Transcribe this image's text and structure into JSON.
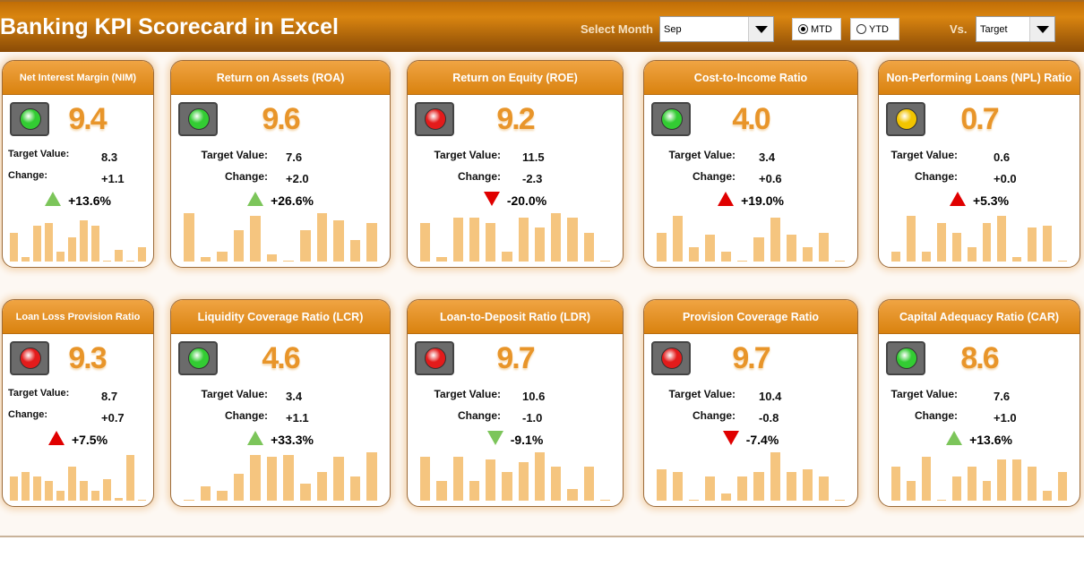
{
  "header": {
    "title": "Banking KPI Scorecard in Excel",
    "select_month_label": "Select Month",
    "month": "Sep",
    "mtd": "MTD",
    "ytd": "YTD",
    "mode_selected": "MTD",
    "vs_label": "Vs.",
    "vs_value": "Target"
  },
  "labels": {
    "target": "Target Value:",
    "change": "Change:"
  },
  "colors": {
    "green": "#33cc33",
    "red": "#e31b1b",
    "yellow": "#f2c400",
    "arrow_green": "#7cc55a",
    "arrow_red": "#e00000"
  },
  "cards": [
    {
      "title": "Net Interest Margin (NIM)",
      "value": "9.4",
      "target": "8.3",
      "change": "+1.1",
      "pct": "+13.6%",
      "dir": "up",
      "arrow_color": "green",
      "light": "green",
      "bars": [
        6,
        1,
        7.5,
        8,
        2,
        5,
        8.5,
        7.5,
        0.2,
        2.5,
        0.2,
        3
      ]
    },
    {
      "title": "Return on Assets (ROA)",
      "value": "9.6",
      "target": "7.6",
      "change": "+2.0",
      "pct": "+26.6%",
      "dir": "up",
      "arrow_color": "green",
      "light": "green",
      "bars": [
        10,
        1,
        2,
        6.5,
        9.5,
        1.5,
        0.2,
        6.5,
        10,
        8.5,
        4.5,
        8
      ]
    },
    {
      "title": "Return on Equity (ROE)",
      "value": "9.2",
      "target": "11.5",
      "change": "-2.3",
      "pct": "-20.0%",
      "dir": "down",
      "arrow_color": "red",
      "light": "red",
      "bars": [
        8,
        1,
        9,
        9,
        8,
        2,
        9,
        7,
        10,
        9,
        6,
        0.2
      ]
    },
    {
      "title": "Cost-to-Income Ratio",
      "value": "4.0",
      "target": "3.4",
      "change": "+0.6",
      "pct": "+19.0%",
      "dir": "up",
      "arrow_color": "red",
      "light": "green",
      "bars": [
        6,
        9.5,
        3,
        5.5,
        2,
        0.2,
        5,
        9,
        5.5,
        3,
        6,
        0.2
      ]
    },
    {
      "title": "Non-Performing Loans (NPL) Ratio",
      "value": "0.7",
      "target": "0.6",
      "change": "+0.0",
      "pct": "+5.3%",
      "dir": "up",
      "arrow_color": "red",
      "light": "yellow",
      "bars": [
        2,
        9.5,
        2,
        8,
        6,
        3,
        8,
        9.5,
        1,
        7,
        7.5,
        0.2
      ]
    },
    {
      "title": "Loan Loss Provision Ratio",
      "value": "9.3",
      "target": "8.7",
      "change": "+0.7",
      "pct": "+7.5%",
      "dir": "up",
      "arrow_color": "red",
      "light": "red",
      "bars": [
        5,
        6,
        5,
        4,
        2,
        7,
        4,
        2,
        4.5,
        0.5,
        9.5,
        0.2
      ]
    },
    {
      "title": "Liquidity Coverage Ratio (LCR)",
      "value": "4.6",
      "target": "3.4",
      "change": "+1.1",
      "pct": "+33.3%",
      "dir": "up",
      "arrow_color": "green",
      "light": "green",
      "bars": [
        0.2,
        3,
        2,
        5.5,
        9.5,
        9,
        9.5,
        3.5,
        6,
        9,
        5,
        10
      ]
    },
    {
      "title": "Loan-to-Deposit Ratio (LDR)",
      "value": "9.7",
      "target": "10.6",
      "change": "-1.0",
      "pct": "-9.1%",
      "dir": "down",
      "arrow_color": "green",
      "light": "red",
      "bars": [
        9,
        4,
        9,
        4,
        8.5,
        6,
        8,
        10,
        7,
        2.5,
        7,
        0.2
      ]
    },
    {
      "title": "Provision Coverage Ratio",
      "value": "9.7",
      "target": "10.4",
      "change": "-0.8",
      "pct": "-7.4%",
      "dir": "down",
      "arrow_color": "red",
      "light": "red",
      "bars": [
        6.5,
        6,
        0.2,
        5,
        1.5,
        5,
        6,
        10,
        6,
        6.5,
        5,
        0.2
      ]
    },
    {
      "title": "Capital Adequacy Ratio (CAR)",
      "value": "8.6",
      "target": "7.6",
      "change": "+1.0",
      "pct": "+13.6%",
      "dir": "up",
      "arrow_color": "green",
      "light": "green",
      "bars": [
        7,
        4,
        9,
        0.2,
        5,
        7,
        4,
        8.5,
        8.5,
        7,
        2,
        6
      ]
    }
  ]
}
